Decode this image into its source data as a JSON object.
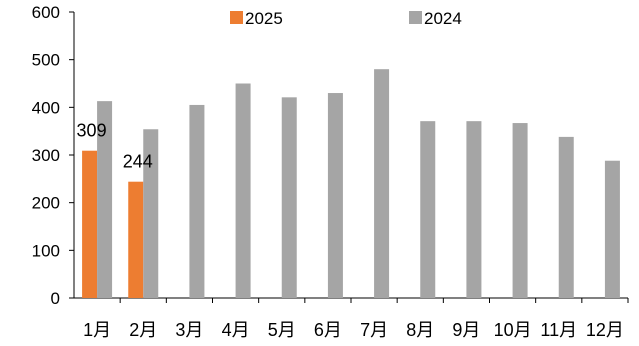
{
  "chart_data": {
    "type": "bar",
    "title": "",
    "xlabel": "",
    "ylabel": "",
    "ylim": [
      0,
      600
    ],
    "yticks": [
      0,
      100,
      200,
      300,
      400,
      500,
      600
    ],
    "grid": false,
    "legend_position": "top",
    "categories": [
      "1月",
      "2月",
      "3月",
      "4月",
      "5月",
      "6月",
      "7月",
      "8月",
      "9月",
      "10月",
      "11月",
      "12月"
    ],
    "series": [
      {
        "name": "2025",
        "color": "#ED7D31",
        "values": [
          309,
          244,
          null,
          null,
          null,
          null,
          null,
          null,
          null,
          null,
          null,
          null
        ],
        "data_labels": [
          "309",
          "244",
          null,
          null,
          null,
          null,
          null,
          null,
          null,
          null,
          null,
          null
        ]
      },
      {
        "name": "2024",
        "color": "#A5A5A5",
        "values": [
          413,
          354,
          405,
          450,
          421,
          430,
          480,
          371,
          371,
          367,
          338,
          288
        ]
      }
    ]
  }
}
